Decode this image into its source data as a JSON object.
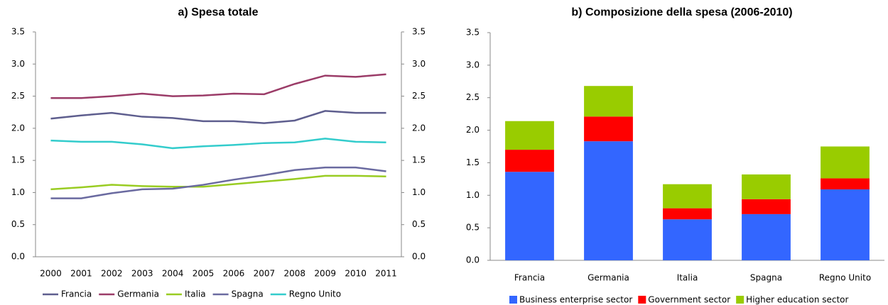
{
  "chart_data": [
    {
      "type": "line",
      "title": "a) Spesa totale",
      "categories": [
        "2000",
        "2001",
        "2002",
        "2003",
        "2004",
        "2005",
        "2006",
        "2007",
        "2008",
        "2009",
        "2010",
        "2011"
      ],
      "series": [
        {
          "name": "Francia",
          "color": "#5e5e8e",
          "values": [
            2.15,
            2.2,
            2.24,
            2.18,
            2.16,
            2.11,
            2.11,
            2.08,
            2.12,
            2.27,
            2.24,
            2.24
          ]
        },
        {
          "name": "Germania",
          "color": "#9b3c68",
          "values": [
            2.47,
            2.47,
            2.5,
            2.54,
            2.5,
            2.51,
            2.54,
            2.53,
            2.69,
            2.82,
            2.8,
            2.84
          ]
        },
        {
          "name": "Italia",
          "color": "#99cc22",
          "values": [
            1.05,
            1.08,
            1.12,
            1.1,
            1.09,
            1.09,
            1.13,
            1.17,
            1.21,
            1.26,
            1.26,
            1.25
          ]
        },
        {
          "name": "Spagna",
          "color": "#6a6aa0",
          "values": [
            0.91,
            0.91,
            0.99,
            1.05,
            1.06,
            1.12,
            1.2,
            1.27,
            1.35,
            1.39,
            1.39,
            1.33
          ]
        },
        {
          "name": "Regno Unito",
          "color": "#33cccc",
          "values": [
            1.81,
            1.79,
            1.79,
            1.75,
            1.69,
            1.72,
            1.74,
            1.77,
            1.78,
            1.84,
            1.79,
            1.78
          ]
        }
      ],
      "ylim": [
        0,
        3.5
      ],
      "yticks": [
        {
          "value": 0,
          "label": "0.0"
        },
        {
          "value": 0.5,
          "label": "0.5"
        },
        {
          "value": 1,
          "label": "1.0"
        },
        {
          "value": 1.5,
          "label": "1.5"
        },
        {
          "value": 2,
          "label": "2.0"
        },
        {
          "value": 2.5,
          "label": "2.5"
        },
        {
          "value": 3,
          "label": "3.0"
        },
        {
          "value": 3.5,
          "label": "3.5"
        }
      ],
      "y2lim": [
        0,
        3.5
      ],
      "y2ticks": [
        {
          "value": 0,
          "label": "0.0"
        },
        {
          "value": 0.5,
          "label": "0.5"
        },
        {
          "value": 1,
          "label": "1.0"
        },
        {
          "value": 1.5,
          "label": "1.5"
        },
        {
          "value": 2,
          "label": "2.0"
        },
        {
          "value": 2.5,
          "label": "2.5"
        },
        {
          "value": 3,
          "label": "3.0"
        },
        {
          "value": 3.5,
          "label": "3.5"
        }
      ],
      "grid": false,
      "legend": "bottom"
    },
    {
      "type": "stacked_bar",
      "title": "b) Composizione della spesa (2006-2010)",
      "categories": [
        "Francia",
        "Germania",
        "Italia",
        "Spagna",
        "Regno Unito"
      ],
      "series": [
        {
          "name": "Business enterprise sector",
          "color": "#3366ff",
          "values": [
            1.36,
            1.83,
            0.63,
            0.71,
            1.09
          ]
        },
        {
          "name": "Government sector",
          "color": "#ff0000",
          "values": [
            0.34,
            0.38,
            0.17,
            0.23,
            0.17
          ]
        },
        {
          "name": "Higher education sector",
          "color": "#99cc00",
          "values": [
            0.44,
            0.47,
            0.37,
            0.38,
            0.49
          ]
        }
      ],
      "ylim": [
        0,
        3.5
      ],
      "yticks": [
        {
          "value": 0,
          "label": "0.0"
        },
        {
          "value": 0.5,
          "label": "0.5"
        },
        {
          "value": 1,
          "label": "1.0"
        },
        {
          "value": 1.5,
          "label": "1.5"
        },
        {
          "value": 2,
          "label": "2.0"
        },
        {
          "value": 2.5,
          "label": "2.5"
        },
        {
          "value": 3,
          "label": "3.0"
        },
        {
          "value": 3.5,
          "label": "3.5"
        }
      ],
      "grid": false,
      "legend": "bottom"
    }
  ]
}
